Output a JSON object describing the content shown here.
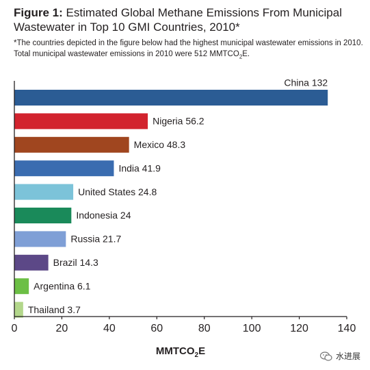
{
  "header": {
    "figure_label": "Figure 1:",
    "title": "Estimated Global Methane Emissions From Municipal Wastewater in Top 10 GMI Countries, 2010*",
    "note_part1": "*The countries depicted in the figure below had the highest municipal wastewater emissions in 2010. Total municipal wastewater emissions in 2010 were 512 MMTCO",
    "note_sub": "2",
    "note_part2": "E."
  },
  "watermark": {
    "text": "水进展",
    "icon": "wechat-icon"
  },
  "chart_data": {
    "type": "bar",
    "orientation": "horizontal",
    "categories": [
      "China",
      "Nigeria",
      "Mexico",
      "India",
      "United States",
      "Indonesia",
      "Russia",
      "Brazil",
      "Argentina",
      "Thailand"
    ],
    "values": [
      132,
      56.2,
      48.3,
      41.9,
      24.8,
      24,
      21.7,
      14.3,
      6.1,
      3.7
    ],
    "data_labels": [
      "China 132",
      "Nigeria 56.2",
      "Mexico 48.3",
      "India 41.9",
      "United States 24.8",
      "Indonesia 24",
      "Russia 21.7",
      "Brazil 14.3",
      "Argentina 6.1",
      "Thailand 3.7"
    ],
    "colors": [
      "#2b5c94",
      "#d2232e",
      "#a0461f",
      "#3a6cb0",
      "#7cc3d9",
      "#1a8a5a",
      "#7f9fd6",
      "#5c4887",
      "#6cbf45",
      "#b3d78b"
    ],
    "xlabel_main": "MMTCO",
    "xlabel_sub": "2",
    "xlabel_end": "E",
    "xlim": [
      0,
      140
    ],
    "xticks": [
      "0",
      "20",
      "40",
      "60",
      "80",
      "100",
      "120",
      "140"
    ],
    "grid": false,
    "legend": "none"
  }
}
